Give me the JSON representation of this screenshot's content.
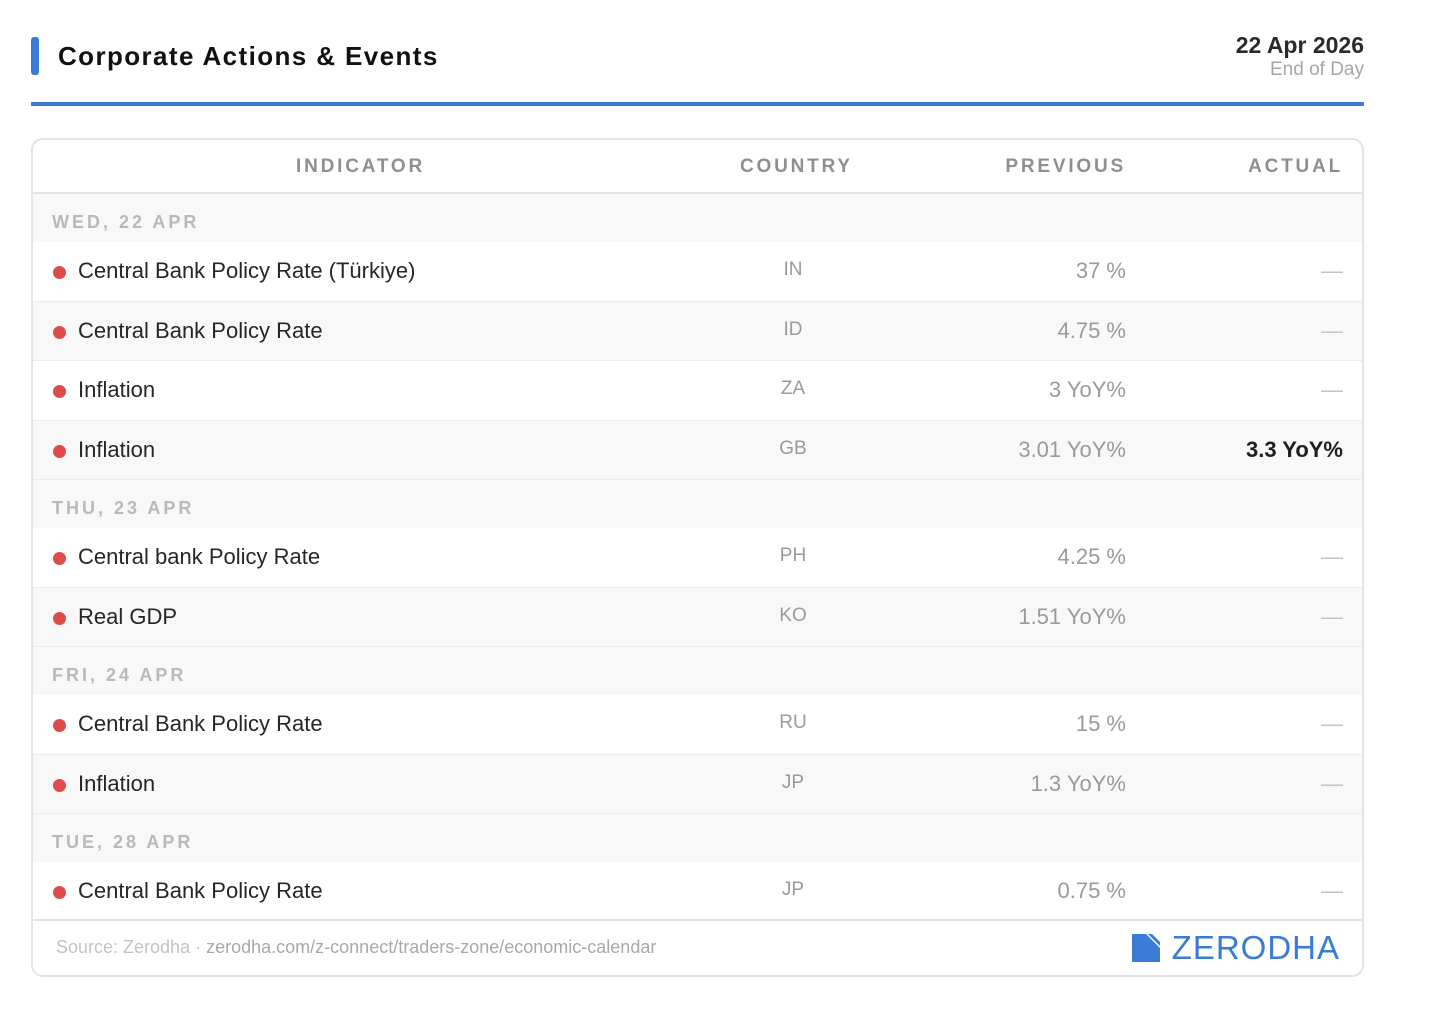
{
  "header": {
    "title": "Corporate Actions & Events",
    "date": "22 Apr 2026",
    "subtitle": "End of Day",
    "accent_color": "#3a7bd5"
  },
  "table": {
    "columns": {
      "indicator": "INDICATOR",
      "country": "COUNTRY",
      "previous": "PREVIOUS",
      "actual": "ACTUAL"
    },
    "groups": [
      {
        "date": "WED, 22 APR",
        "rows": [
          {
            "indicator": "Central Bank Policy Rate (Türkiye)",
            "country": "IN",
            "previous": "37 %",
            "actual": "—",
            "actual_released": false
          },
          {
            "indicator": "Central Bank Policy Rate",
            "country": "ID",
            "previous": "4.75 %",
            "actual": "—",
            "actual_released": false
          },
          {
            "indicator": "Inflation",
            "country": "ZA",
            "previous": "3 YoY%",
            "actual": "—",
            "actual_released": false
          },
          {
            "indicator": "Inflation",
            "country": "GB",
            "previous": "3.01 YoY%",
            "actual": "3.3 YoY%",
            "actual_released": true
          }
        ]
      },
      {
        "date": "THU, 23 APR",
        "rows": [
          {
            "indicator": "Central bank Policy Rate",
            "country": "PH",
            "previous": "4.25 %",
            "actual": "—",
            "actual_released": false
          },
          {
            "indicator": "Real GDP",
            "country": "KO",
            "previous": "1.51 YoY%",
            "actual": "—",
            "actual_released": false
          }
        ]
      },
      {
        "date": "FRI, 24 APR",
        "rows": [
          {
            "indicator": "Central Bank Policy Rate",
            "country": "RU",
            "previous": "15 %",
            "actual": "—",
            "actual_released": false
          },
          {
            "indicator": "Inflation",
            "country": "JP",
            "previous": "1.3 YoY%",
            "actual": "—",
            "actual_released": false
          }
        ]
      },
      {
        "date": "TUE, 28 APR",
        "rows": [
          {
            "indicator": "Central Bank Policy Rate",
            "country": "JP",
            "previous": "0.75 %",
            "actual": "—",
            "actual_released": false
          }
        ]
      }
    ],
    "impact_dot_color": "#df4b4b"
  },
  "footer": {
    "source_label": "Source: Zerodha",
    "separator": "·",
    "source_link": "zerodha.com/z-connect/traders-zone/economic-calendar",
    "brand_name": "ZERODHA",
    "brand_icon": "zerodha-logo-icon"
  }
}
